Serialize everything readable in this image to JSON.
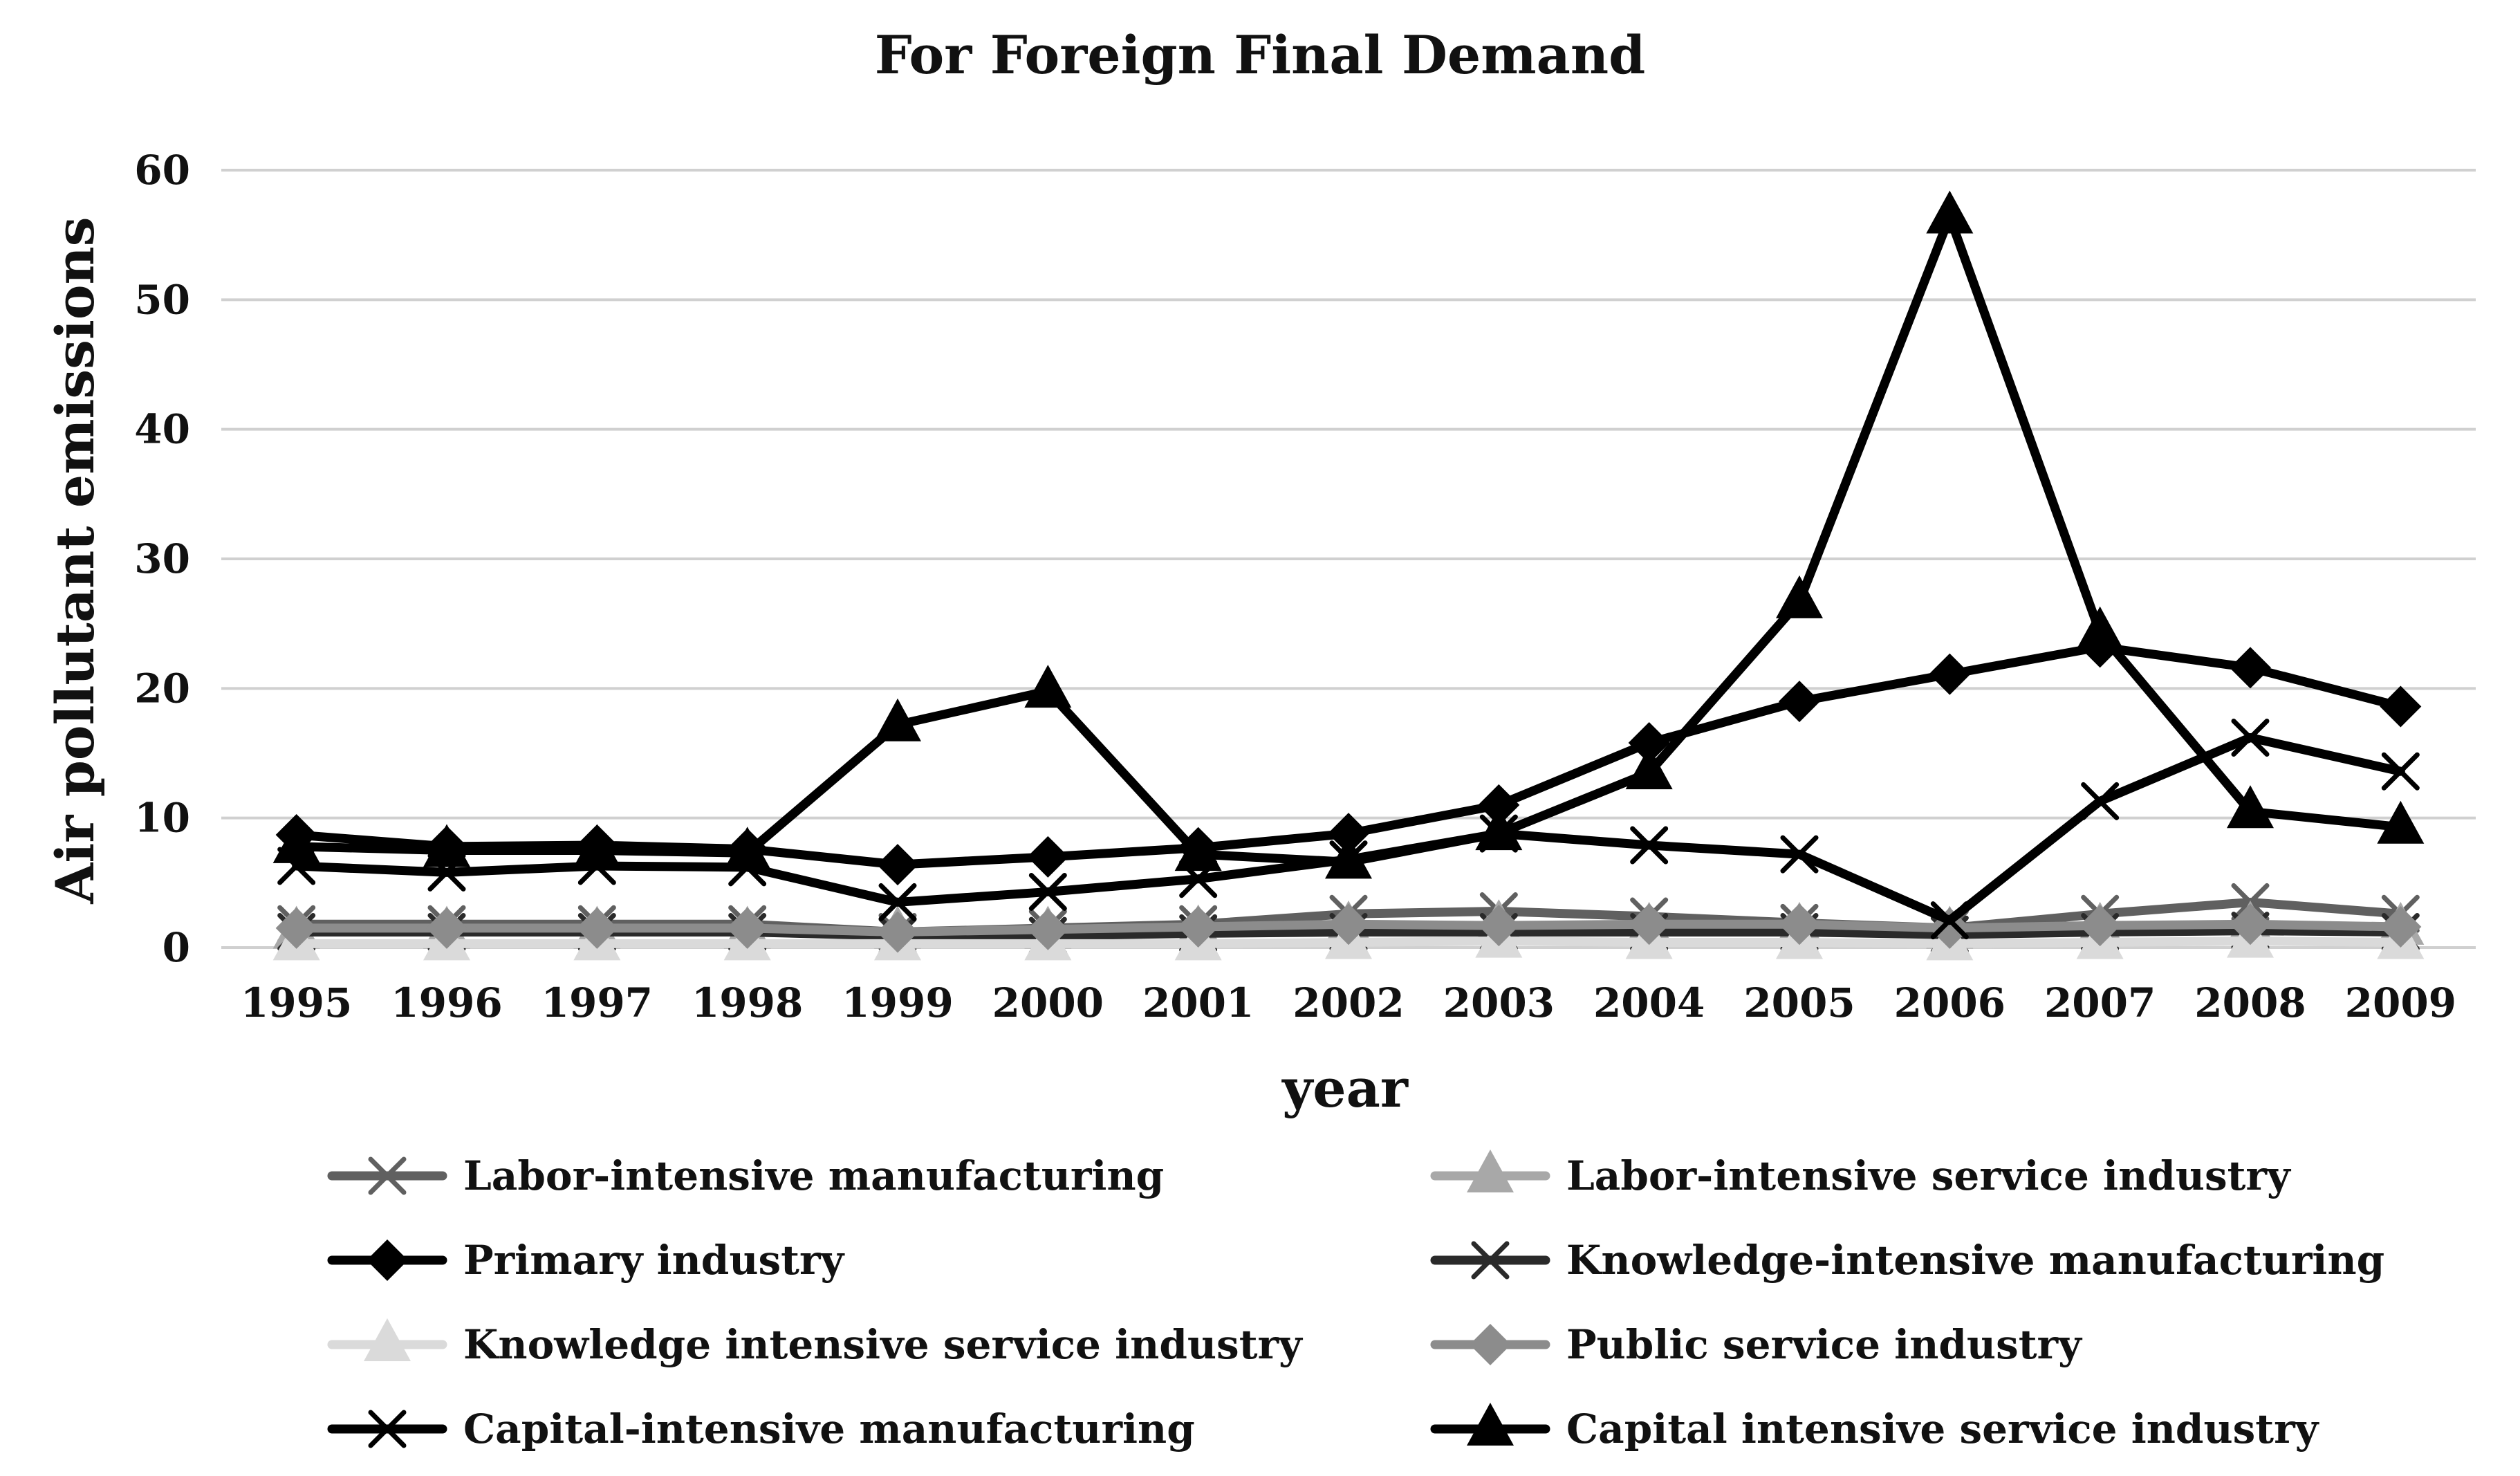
{
  "chart_data": {
    "type": "line",
    "title": "For Foreign Final Demand",
    "xlabel": "year",
    "ylabel": "Air pollutant emissions",
    "ylim": [
      0,
      60
    ],
    "yticks": [
      0,
      10,
      20,
      30,
      40,
      50,
      60
    ],
    "grid": "horizontal",
    "legend_position": "bottom",
    "categories": [
      "1995",
      "1996",
      "1997",
      "1998",
      "1999",
      "2000",
      "2001",
      "2002",
      "2003",
      "2004",
      "2005",
      "2006",
      "2007",
      "2008",
      "2009"
    ],
    "series": [
      {
        "name": "Labor-intensive manufacturing",
        "color": "#606060",
        "marker": "x",
        "values": [
          1.8,
          1.8,
          1.8,
          1.8,
          1.2,
          1.5,
          1.8,
          2.6,
          2.8,
          2.4,
          1.9,
          1.5,
          2.6,
          3.5,
          2.6
        ]
      },
      {
        "name": "Labor-intensive service industry",
        "color": "#a8a8a8",
        "marker": "triangle",
        "values": [
          1.2,
          1.2,
          1.2,
          1.2,
          1.2,
          1.2,
          1.3,
          1.6,
          1.7,
          1.5,
          1.5,
          1.2,
          1.5,
          1.6,
          1.5
        ]
      },
      {
        "name": "Primary industry",
        "color": "#000000",
        "marker": "diamond",
        "values": [
          8.7,
          7.8,
          7.9,
          7.6,
          6.4,
          7.0,
          7.7,
          8.8,
          11.0,
          15.8,
          19.0,
          21.1,
          23.2,
          21.6,
          18.6
        ]
      },
      {
        "name": "Knowledge-intensive manufacturing",
        "color": "#2a2a2a",
        "marker": "x",
        "values": [
          1.2,
          1.2,
          1.2,
          1.2,
          0.9,
          0.9,
          1.1,
          1.2,
          1.2,
          1.2,
          1.2,
          1.0,
          1.2,
          1.3,
          1.2
        ]
      },
      {
        "name": "Knowledge intensive service industry",
        "color": "#dadada",
        "marker": "triangle",
        "values": [
          0.3,
          0.3,
          0.3,
          0.3,
          0.3,
          0.3,
          0.3,
          0.4,
          0.5,
          0.4,
          0.4,
          0.3,
          0.4,
          0.5,
          0.4
        ]
      },
      {
        "name": "Public service industry",
        "color": "#8c8c8c",
        "marker": "diamond",
        "values": [
          1.5,
          1.5,
          1.5,
          1.5,
          1.2,
          1.4,
          1.6,
          1.8,
          1.7,
          1.8,
          1.8,
          1.5,
          1.7,
          1.8,
          1.6
        ]
      },
      {
        "name": "Capital-intensive manufacturing",
        "color": "#000000",
        "marker": "x",
        "values": [
          6.3,
          5.8,
          6.3,
          6.2,
          3.5,
          4.3,
          5.3,
          6.8,
          8.8,
          7.9,
          7.2,
          2.1,
          11.3,
          16.2,
          13.6
        ]
      },
      {
        "name": "Capital intensive service industry",
        "color": "#000000",
        "marker": "triangle",
        "values": [
          7.8,
          7.5,
          7.5,
          7.3,
          17.2,
          19.8,
          7.2,
          6.6,
          8.8,
          13.5,
          26.7,
          56.4,
          24.3,
          10.5,
          9.3
        ]
      }
    ]
  }
}
